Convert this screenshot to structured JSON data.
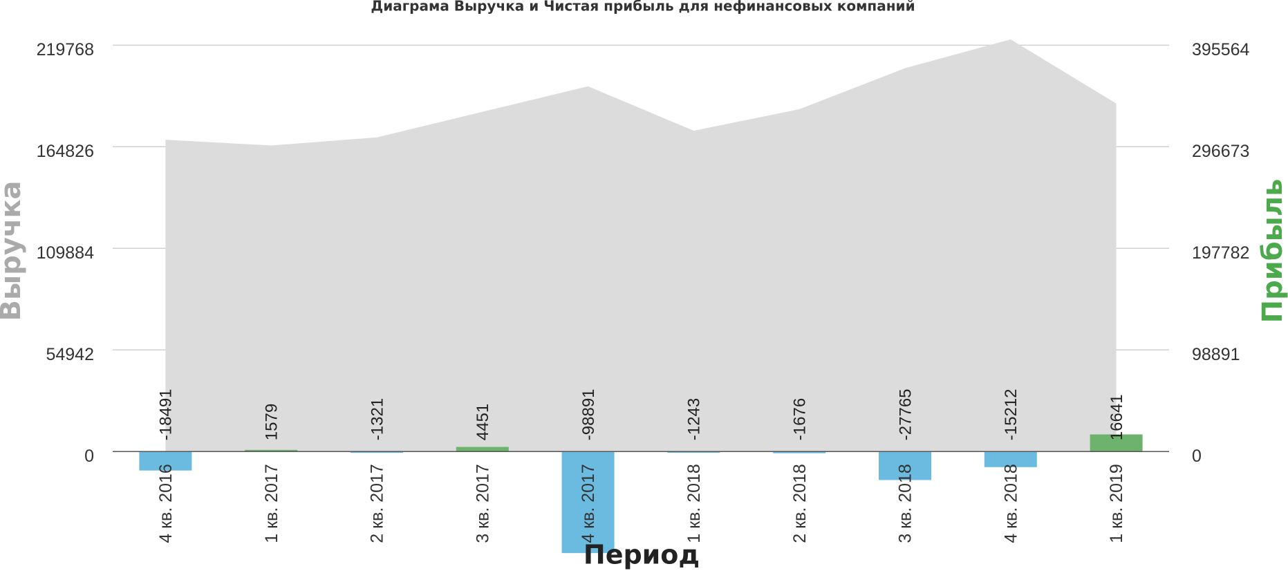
{
  "chart_data": {
    "type": "bar-area",
    "title": "Диаграма Выручка и Чистая прибыль для нефинансовых компаний",
    "x_label": "Период",
    "y_label": "Выручка",
    "y2_label": "Прибыль",
    "categories": [
      "4 кв. 2016",
      "1 кв. 2017",
      "2 кв. 2017",
      "3 кв. 2017",
      "4 кв. 2017",
      "1 кв. 2018",
      "2 кв. 2018",
      "3 кв. 2018",
      "4 кв. 2018",
      "1 кв. 2019"
    ],
    "series": [
      {
        "name": "Выручка",
        "type": "area",
        "color": "#dcdcdc",
        "axis": "y",
        "values": [
          168600,
          165500,
          169900,
          183700,
          197500,
          173500,
          185100,
          207300,
          222900,
          188200
        ]
      },
      {
        "name": "Прибыль",
        "type": "bar",
        "color": "#6db36d",
        "negative_color": "#6bbbe0",
        "axis": "y2",
        "values": [
          -18491,
          1579,
          -1321,
          4451,
          -98891,
          -1243,
          -1676,
          -27765,
          -15212,
          16641
        ]
      }
    ],
    "ylim": [
      -56000,
      224000
    ],
    "yticks": [
      0,
      54942,
      109884,
      164826,
      219768
    ],
    "y2lim": [
      -100800,
      403200
    ],
    "y2ticks": [
      0,
      98891,
      197782,
      296673,
      395564
    ],
    "grid": true
  }
}
